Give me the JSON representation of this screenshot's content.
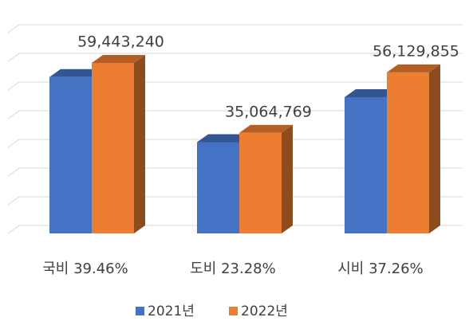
{
  "chart_data": {
    "type": "bar3d",
    "categories": [
      "국비 39.46%",
      "도비 23.28%",
      "시비 37.26%"
    ],
    "series": [
      {
        "name": "2021년",
        "color": "#4472c4",
        "values": [
          54500000,
          31800000,
          47500000
        ]
      },
      {
        "name": "2022년",
        "color": "#ed7d31",
        "values": [
          59443240,
          35064769,
          56129855
        ],
        "value_labels": [
          "59,443,240",
          "35,064,769",
          "56,129,855"
        ]
      }
    ],
    "ylim": [
      0,
      70000000
    ],
    "yticks": [
      0,
      10000000,
      20000000,
      30000000,
      40000000,
      50000000,
      60000000,
      70000000
    ],
    "grid": true,
    "legend": "bottom"
  }
}
